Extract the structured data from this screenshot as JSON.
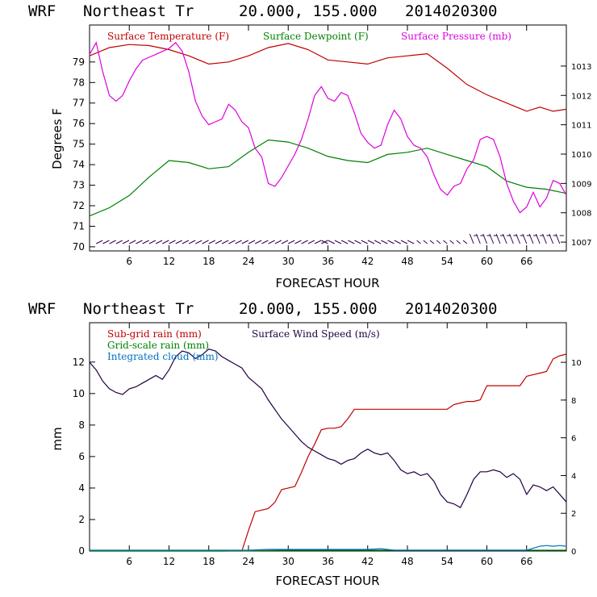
{
  "chart_data": [
    {
      "type": "line",
      "header": {
        "model": "WRF",
        "location": "Northeast Tr",
        "coords": "20.000, 155.000",
        "run": "2014020300"
      },
      "xlabel": "FORECAST HOUR",
      "ylabel": "Degrees F",
      "xlim": [
        0,
        72
      ],
      "ylim": [
        69.8,
        80.8
      ],
      "y2lim": [
        1006.7,
        1014.4
      ],
      "xticks": [
        6,
        12,
        18,
        24,
        30,
        36,
        42,
        48,
        54,
        60,
        66
      ],
      "yticks": [
        70,
        71,
        72,
        73,
        74,
        75,
        76,
        77,
        78,
        79
      ],
      "y2ticks": [
        1007,
        1008,
        1009,
        1010,
        1011,
        1012,
        1013
      ],
      "legend": [
        "Surface Temperature (F)",
        "Surface Dewpoint (F)",
        "Surface Pressure (mb)"
      ],
      "colors": [
        "#c00000",
        "#008000",
        "#dd00dd"
      ],
      "series": [
        {
          "name": "Surface Temperature (F)",
          "axis": "left",
          "x": [
            0,
            3,
            6,
            9,
            12,
            15,
            18,
            21,
            24,
            27,
            30,
            33,
            36,
            39,
            42,
            45,
            48,
            51,
            54,
            57,
            60,
            63,
            66,
            68,
            70,
            72
          ],
          "y": [
            79.3,
            79.7,
            79.85,
            79.8,
            79.6,
            79.3,
            78.9,
            79.0,
            79.3,
            79.7,
            79.9,
            79.6,
            79.1,
            79.0,
            78.9,
            79.2,
            79.3,
            79.4,
            78.7,
            77.9,
            77.4,
            77.0,
            76.6,
            76.8,
            76.6,
            76.7
          ]
        },
        {
          "name": "Surface Dewpoint (F)",
          "axis": "left",
          "x": [
            0,
            3,
            6,
            9,
            12,
            15,
            18,
            21,
            24,
            27,
            30,
            33,
            36,
            39,
            42,
            45,
            48,
            51,
            54,
            57,
            60,
            63,
            66,
            69,
            72
          ],
          "y": [
            71.5,
            71.9,
            72.5,
            73.4,
            74.2,
            74.1,
            73.8,
            73.9,
            74.6,
            75.2,
            75.1,
            74.8,
            74.4,
            74.2,
            74.1,
            74.5,
            74.6,
            74.8,
            74.5,
            74.2,
            73.9,
            73.2,
            72.9,
            72.8,
            72.6
          ]
        },
        {
          "name": "Surface Pressure (mb)",
          "axis": "right",
          "x": [
            0,
            1,
            2,
            3,
            4,
            5,
            6,
            7,
            8,
            9,
            10,
            11,
            12,
            13,
            14,
            15,
            16,
            17,
            18,
            19,
            20,
            21,
            22,
            23,
            24,
            25,
            26,
            27,
            28,
            29,
            30,
            31,
            32,
            33,
            34,
            35,
            36,
            37,
            38,
            39,
            40,
            41,
            42,
            43,
            44,
            45,
            46,
            47,
            48,
            49,
            50,
            51,
            52,
            53,
            54,
            55,
            56,
            57,
            58,
            59,
            60,
            61,
            62,
            63,
            64,
            65,
            66,
            67,
            68,
            69,
            70,
            71,
            72
          ],
          "y": [
            1013.4,
            1013.8,
            1012.8,
            1012.0,
            1011.8,
            1012.0,
            1012.5,
            1012.9,
            1013.2,
            1013.3,
            1013.4,
            1013.5,
            1013.6,
            1013.8,
            1013.5,
            1012.8,
            1011.8,
            1011.3,
            1011.0,
            1011.1,
            1011.2,
            1011.7,
            1011.5,
            1011.1,
            1010.9,
            1010.2,
            1009.9,
            1009.0,
            1008.9,
            1009.2,
            1009.6,
            1010.0,
            1010.5,
            1011.2,
            1012.0,
            1012.3,
            1011.9,
            1011.8,
            1012.1,
            1012.0,
            1011.4,
            1010.7,
            1010.4,
            1010.2,
            1010.3,
            1011.0,
            1011.5,
            1011.2,
            1010.6,
            1010.3,
            1010.2,
            1009.9,
            1009.3,
            1008.8,
            1008.6,
            1008.9,
            1009.0,
            1009.5,
            1009.8,
            1010.5,
            1010.6,
            1010.5,
            1009.9,
            1009.0,
            1008.4,
            1008.0,
            1008.2,
            1008.7,
            1008.2,
            1008.5,
            1009.1,
            1009.0,
            1008.6
          ]
        }
      ],
      "wind_barbs": {
        "x_start": 1,
        "x_end": 71,
        "step": 1
      }
    },
    {
      "type": "line",
      "header": {
        "model": "WRF",
        "location": "Northeast Tr",
        "coords": "20.000, 155.000",
        "run": "2014020300"
      },
      "xlabel": "FORECAST HOUR",
      "ylabel": "mm",
      "xlim": [
        0,
        72
      ],
      "ylim": [
        0,
        14.5
      ],
      "y2lim": [
        0,
        12.1
      ],
      "xticks": [
        6,
        12,
        18,
        24,
        30,
        36,
        42,
        48,
        54,
        60,
        66
      ],
      "yticks": [
        0,
        2,
        4,
        6,
        8,
        10,
        12
      ],
      "y2ticks": [
        0,
        2,
        4,
        6,
        8,
        10
      ],
      "legend": [
        "Sub-grid rain (mm)",
        "Surface Wind Speed (m/s)",
        "Grid-scale rain (mm)",
        "Integrated cloud (mm)"
      ],
      "colors": [
        "#c00000",
        "#200040",
        "#008000",
        "#0070c0"
      ],
      "series": [
        {
          "name": "Sub-grid rain (mm)",
          "axis": "left",
          "x": [
            0,
            23,
            24,
            25,
            26,
            27,
            28,
            29,
            30,
            31,
            32,
            33,
            34,
            35,
            36,
            37,
            38,
            39,
            40,
            41,
            48,
            54,
            55,
            56,
            57,
            58,
            59,
            60,
            65,
            66,
            67,
            68,
            69,
            70,
            71,
            72
          ],
          "y": [
            0,
            0,
            1.3,
            2.5,
            2.6,
            2.7,
            3.1,
            3.9,
            4.0,
            4.1,
            5.0,
            6.0,
            6.8,
            7.7,
            7.8,
            7.8,
            7.9,
            8.4,
            9.0,
            9.0,
            9.0,
            9.0,
            9.3,
            9.4,
            9.5,
            9.5,
            9.6,
            10.5,
            10.5,
            11.1,
            11.2,
            11.3,
            11.4,
            12.2,
            12.4,
            12.5
          ]
        },
        {
          "name": "Surface Wind Speed (m/s)",
          "axis": "right",
          "x": [
            0,
            1,
            2,
            3,
            4,
            5,
            6,
            7,
            8,
            9,
            10,
            11,
            12,
            13,
            14,
            15,
            16,
            17,
            18,
            19,
            20,
            21,
            22,
            23,
            24,
            25,
            26,
            27,
            28,
            29,
            30,
            31,
            32,
            33,
            34,
            35,
            36,
            37,
            38,
            39,
            40,
            41,
            42,
            43,
            44,
            45,
            46,
            47,
            48,
            49,
            50,
            51,
            52,
            53,
            54,
            55,
            56,
            57,
            58,
            59,
            60,
            61,
            62,
            63,
            64,
            65,
            66,
            67,
            68,
            69,
            70,
            71,
            72
          ],
          "y": [
            10.0,
            9.6,
            9.0,
            8.6,
            8.4,
            8.3,
            8.6,
            8.7,
            8.9,
            9.1,
            9.3,
            9.1,
            9.6,
            10.3,
            10.6,
            10.5,
            10.2,
            10.4,
            10.7,
            10.6,
            10.3,
            10.1,
            9.9,
            9.7,
            9.2,
            8.9,
            8.6,
            8.0,
            7.5,
            7.0,
            6.6,
            6.2,
            5.8,
            5.5,
            5.3,
            5.1,
            4.9,
            4.8,
            4.6,
            4.8,
            4.9,
            5.2,
            5.4,
            5.2,
            5.1,
            5.2,
            4.8,
            4.3,
            4.1,
            4.2,
            4.0,
            4.1,
            3.7,
            3.0,
            2.6,
            2.5,
            2.3,
            3.0,
            3.8,
            4.2,
            4.2,
            4.3,
            4.2,
            3.9,
            4.1,
            3.8,
            3.0,
            3.5,
            3.4,
            3.2,
            3.4,
            3.0,
            2.6
          ]
        },
        {
          "name": "Grid-scale rain (mm)",
          "axis": "left",
          "x": [
            0,
            20,
            30,
            36,
            42,
            48,
            54,
            60,
            66,
            72
          ],
          "y": [
            0,
            0,
            0.05,
            0.05,
            0.05,
            0.05,
            0.05,
            0.05,
            0.05,
            0.05
          ]
        },
        {
          "name": "Integrated cloud (mm)",
          "axis": "left",
          "x": [
            0,
            6,
            12,
            18,
            24,
            27,
            30,
            36,
            42,
            44,
            46,
            48,
            54,
            60,
            66,
            68,
            69,
            70,
            71,
            72
          ],
          "y": [
            0.05,
            0.05,
            0.05,
            0.05,
            0.05,
            0.1,
            0.1,
            0.1,
            0.1,
            0.15,
            0.05,
            0.05,
            0.05,
            0.05,
            0.05,
            0.3,
            0.35,
            0.3,
            0.35,
            0.3
          ]
        }
      ]
    }
  ]
}
